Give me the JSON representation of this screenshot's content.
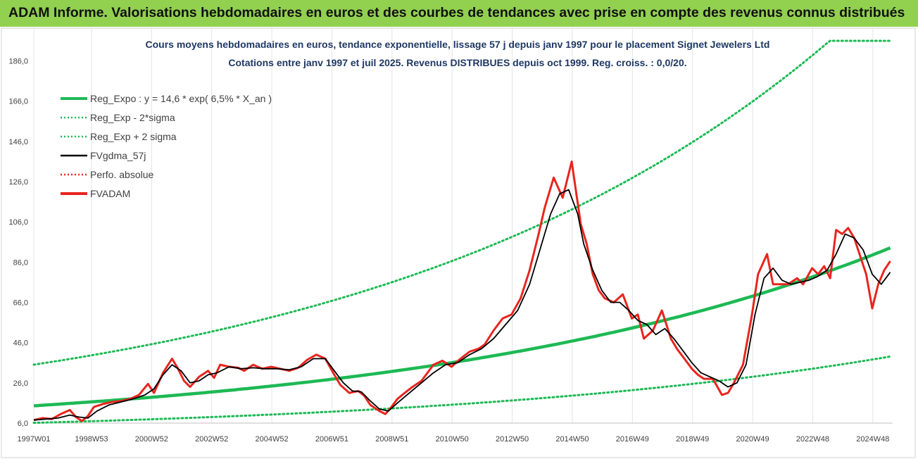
{
  "header": {
    "title": "ADAM Informe. Valorisations hebdomadaires en euros et des courbes de tendances avec prise en compte des revenus connus distribués"
  },
  "chart_data": {
    "type": "line",
    "title": "Cours moyens hebdomadaires en euros, tendance exponentielle, lissage 57 j depuis janv 1997  pour le placement Signet Jewelers Ltd",
    "subtitle": "Cotations entre janv 1997 et juil 2025. Revenus DISTRIBUES depuis oct 1999. Reg. croiss. : 0,0/20.",
    "xlabel": "",
    "ylabel": "",
    "xlim": [
      1997.0,
      2025.58
    ],
    "ylim": [
      6,
      196
    ],
    "y_ticks": [
      "6,0",
      "26,0",
      "46,0",
      "66,0",
      "86,0",
      "106,0",
      "126,0",
      "146,0",
      "166,0",
      "186,0"
    ],
    "x_ticks": [
      "1997W01",
      "1998W53",
      "2000W52",
      "2002W52",
      "2004W52",
      "2006W51",
      "2008W51",
      "2010W50",
      "2012W50",
      "2014W50",
      "2016W49",
      "2018W49",
      "2020W49",
      "2022W48",
      "2024W48"
    ],
    "grid": "vertical",
    "legend_position": "top-left",
    "legend": [
      {
        "label": "Reg_Expo : y = 14,6 * exp( 6,5% *  X_an )",
        "color": "#1db954",
        "style": "solid"
      },
      {
        "label": "Reg_Exp - 2*sigma",
        "color": "#1db954",
        "style": "dotted"
      },
      {
        "label": "Reg_Exp + 2 sigma",
        "color": "#1db954",
        "style": "dotted"
      },
      {
        "label": "FVgdma_57j",
        "color": "#000000",
        "style": "solid"
      },
      {
        "label": "Perfo. absolue",
        "color": "#e8251f",
        "style": "dotted"
      },
      {
        "label": "FVADAM",
        "color": "#e8251f",
        "style": "solid"
      }
    ],
    "regression": {
      "a": 14.6,
      "rate": 0.065,
      "lower_factor": 0.42,
      "upper_factor": 2.4,
      "upper_cap": 196
    },
    "series": [
      {
        "name": "FVADAM",
        "x": [
          1997.0,
          1997.3,
          1997.6,
          1997.9,
          1998.2,
          1998.4,
          1998.6,
          1998.8,
          1999.0,
          1999.3,
          1999.6,
          1999.9,
          2000.2,
          2000.5,
          2000.8,
          2001.0,
          2001.3,
          2001.6,
          2001.8,
          2002.0,
          2002.2,
          2002.5,
          2002.8,
          2003.0,
          2003.2,
          2003.5,
          2003.8,
          2004.0,
          2004.3,
          2004.6,
          2004.9,
          2005.2,
          2005.5,
          2005.8,
          2006.1,
          2006.4,
          2006.7,
          2007.0,
          2007.2,
          2007.5,
          2007.8,
          2008.0,
          2008.2,
          2008.5,
          2008.7,
          2008.9,
          2009.1,
          2009.3,
          2009.6,
          2009.9,
          2010.1,
          2010.3,
          2010.6,
          2010.9,
          2011.2,
          2011.5,
          2011.8,
          2012.0,
          2012.3,
          2012.6,
          2012.9,
          2013.2,
          2013.5,
          2013.8,
          2014.0,
          2014.3,
          2014.6,
          2014.9,
          2015.2,
          2015.4,
          2015.6,
          2015.8,
          2016.0,
          2016.3,
          2016.6,
          2016.9,
          2017.1,
          2017.3,
          2017.6,
          2017.9,
          2018.2,
          2018.4,
          2018.7,
          2018.9,
          2019.1,
          2019.3,
          2019.6,
          2019.9,
          2020.1,
          2020.3,
          2020.6,
          2020.9,
          2021.1,
          2021.4,
          2021.6,
          2021.9,
          2022.1,
          2022.4,
          2022.6,
          2022.9,
          2023.1,
          2023.3,
          2023.5,
          2023.7,
          2023.9,
          2024.1,
          2024.3,
          2024.5,
          2024.7,
          2024.9,
          2025.1,
          2025.3,
          2025.5
        ],
        "y": [
          7.5,
          8.5,
          8.0,
          10.5,
          12.5,
          9.0,
          7.0,
          9.5,
          14.0,
          15.5,
          16.5,
          17.0,
          18.0,
          20.0,
          25.5,
          21.0,
          31.0,
          38.0,
          33.0,
          27.0,
          24.0,
          29.0,
          32.0,
          28.5,
          35.0,
          34.0,
          33.5,
          32.0,
          35.0,
          33.0,
          34.0,
          33.0,
          32.0,
          33.5,
          37.5,
          40.0,
          38.0,
          30.0,
          25.0,
          21.0,
          22.0,
          19.5,
          15.0,
          12.0,
          10.5,
          14.0,
          18.0,
          20.5,
          24.0,
          27.0,
          31.0,
          35.0,
          37.0,
          34.0,
          38.0,
          41.5,
          43.0,
          45.0,
          52.0,
          58.0,
          60.0,
          68.0,
          82.0,
          100.0,
          113.0,
          128.0,
          118.0,
          136.0,
          105.0,
          95.0,
          80.0,
          72.0,
          68.0,
          66.0,
          70.0,
          58.0,
          60.0,
          48.0,
          52.0,
          62.0,
          48.0,
          43.0,
          37.0,
          33.0,
          30.0,
          28.0,
          28.0,
          20.0,
          21.0,
          26.0,
          35.0,
          60.0,
          80.0,
          90.0,
          75.0,
          75.0,
          75.0,
          78.0,
          75.0,
          83.0,
          80.0,
          84.0,
          78.0,
          102.0,
          100.0,
          103.0,
          98.0,
          89.0,
          80.0,
          63.0,
          75.0,
          82.0,
          86.5
        ]
      },
      {
        "name": "FVgdma_57j",
        "x": [
          1997.0,
          1997.4,
          1997.8,
          1998.2,
          1998.5,
          1998.8,
          1999.1,
          1999.5,
          1999.9,
          2000.3,
          2000.7,
          2001.0,
          2001.3,
          2001.6,
          2001.9,
          2002.2,
          2002.5,
          2002.8,
          2003.1,
          2003.5,
          2003.9,
          2004.3,
          2004.7,
          2005.1,
          2005.5,
          2005.9,
          2006.3,
          2006.7,
          2007.0,
          2007.3,
          2007.6,
          2007.9,
          2008.2,
          2008.5,
          2008.8,
          2009.1,
          2009.5,
          2009.9,
          2010.3,
          2010.7,
          2011.1,
          2011.5,
          2011.9,
          2012.3,
          2012.7,
          2013.1,
          2013.5,
          2013.9,
          2014.2,
          2014.5,
          2014.8,
          2015.1,
          2015.3,
          2015.6,
          2015.9,
          2016.2,
          2016.5,
          2016.8,
          2017.1,
          2017.4,
          2017.7,
          2018.0,
          2018.3,
          2018.6,
          2018.9,
          2019.2,
          2019.5,
          2019.8,
          2020.1,
          2020.4,
          2020.7,
          2021.0,
          2021.3,
          2021.6,
          2021.9,
          2022.2,
          2022.5,
          2022.8,
          2023.1,
          2023.4,
          2023.7,
          2024.0,
          2024.3,
          2024.6,
          2024.9,
          2025.2,
          2025.5
        ],
        "y": [
          7.5,
          8.0,
          8.5,
          10.0,
          9.0,
          8.5,
          12.0,
          15.0,
          16.5,
          18.0,
          20.0,
          23.0,
          30.0,
          35.0,
          32.0,
          26.0,
          27.0,
          30.0,
          31.0,
          34.0,
          33.0,
          33.5,
          33.0,
          33.0,
          32.5,
          34.0,
          38.0,
          38.0,
          32.0,
          26.0,
          22.0,
          21.5,
          17.0,
          13.0,
          12.0,
          16.0,
          21.0,
          26.0,
          31.0,
          35.0,
          36.0,
          40.0,
          43.0,
          48.0,
          55.0,
          62.0,
          75.0,
          95.0,
          110.0,
          120.0,
          122.0,
          110.0,
          95.0,
          82.0,
          72.0,
          66.0,
          66.0,
          62.0,
          57.0,
          55.0,
          50.0,
          53.0,
          48.0,
          42.0,
          36.0,
          31.0,
          29.0,
          27.0,
          24.0,
          26.0,
          35.0,
          60.0,
          78.0,
          83.0,
          77.0,
          75.0,
          76.0,
          77.0,
          79.0,
          82.0,
          90.0,
          100.0,
          98.0,
          92.0,
          80.0,
          75.0,
          81.0
        ]
      }
    ]
  }
}
